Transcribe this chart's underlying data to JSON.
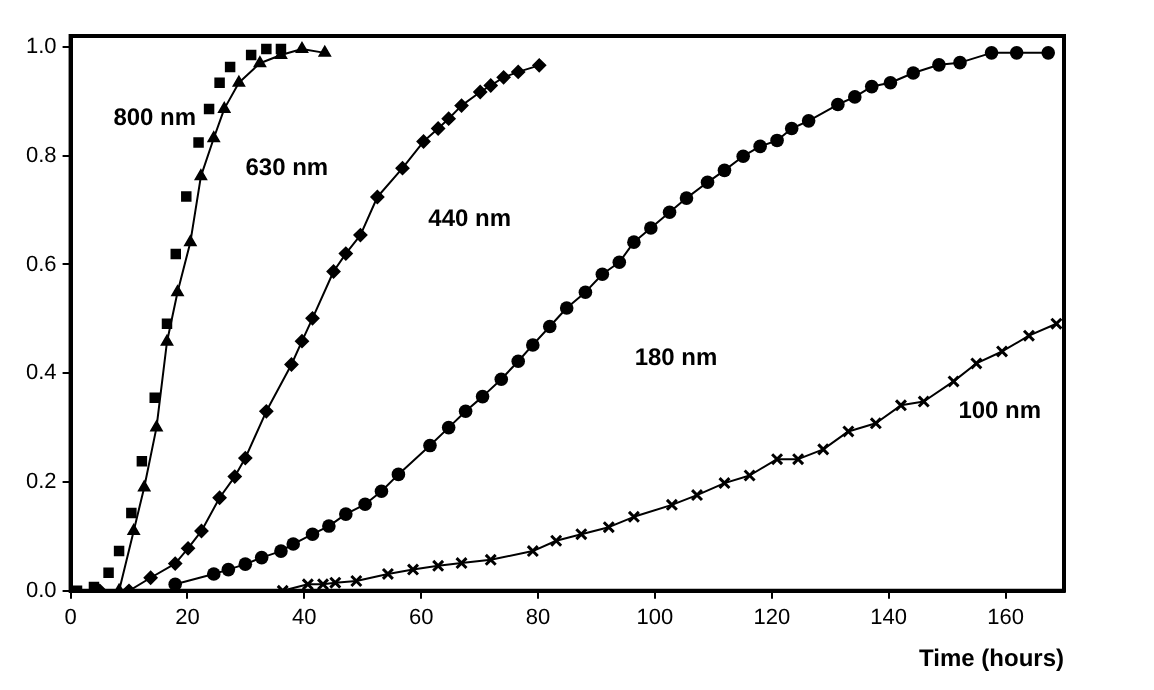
{
  "chart_data": {
    "type": "line",
    "xlabel": "Time (hours)",
    "xlim": [
      0,
      170
    ],
    "xticks": [
      0,
      20,
      40,
      60,
      80,
      100,
      120,
      140,
      160
    ],
    "ylim": [
      0,
      1.02
    ],
    "yticks": [
      {
        "value": 0,
        "label": "0.0"
      },
      {
        "value": 0.2,
        "label": "0.2"
      },
      {
        "value": 0.4,
        "label": "0.4"
      },
      {
        "value": 0.6,
        "label": "0.6"
      },
      {
        "value": 0.8,
        "label": "0.8"
      },
      {
        "value": 1,
        "label": "1.0"
      }
    ],
    "grid": false,
    "legend": false,
    "line_style": "solid",
    "series": [
      {
        "name": "800 nm",
        "type": "scatter",
        "marker": "square",
        "color": "#000000",
        "x": [
          1.1,
          4.0,
          6.5,
          8.3,
          10.4,
          12.2,
          14.4,
          16.5,
          18.0,
          19.8,
          21.9,
          23.7,
          25.5,
          27.3,
          30.9,
          33.5,
          36.0
        ],
        "values": [
          0,
          0.007,
          0.033,
          0.073,
          0.143,
          0.238,
          0.355,
          0.491,
          0.619,
          0.725,
          0.824,
          0.886,
          0.934,
          0.963,
          0.985,
          0.996,
          0.996
        ]
      },
      {
        "name": "630 nm",
        "type": "line",
        "marker": "triangle",
        "color": "#000000",
        "x": [
          0,
          4,
          8.3,
          10.8,
          12.6,
          14.7,
          16.5,
          18.3,
          20.5,
          22.3,
          24.5,
          26.3,
          28.8,
          32.4,
          36.0,
          39.6,
          43.5
        ],
        "values": [
          0,
          0,
          0,
          0.11,
          0.19,
          0.3,
          0.458,
          0.549,
          0.641,
          0.762,
          0.832,
          0.886,
          0.934,
          0.97,
          0.985,
          0.996,
          0.989
        ]
      },
      {
        "name": "440 nm",
        "type": "line",
        "marker": "diamond",
        "color": "#000000",
        "x": [
          5,
          10,
          13.7,
          17.9,
          20.1,
          22.4,
          25.5,
          28.1,
          29.9,
          33.5,
          37.8,
          39.6,
          41.4,
          45.0,
          47.1,
          49.6,
          52.5,
          56.8,
          60.4,
          62.9,
          64.7,
          66.9,
          70.1,
          71.9,
          74.1,
          76.6,
          80.2
        ],
        "values": [
          0,
          0,
          0.024,
          0.05,
          0.078,
          0.11,
          0.171,
          0.21,
          0.244,
          0.33,
          0.416,
          0.459,
          0.501,
          0.587,
          0.62,
          0.654,
          0.724,
          0.777,
          0.826,
          0.85,
          0.868,
          0.892,
          0.917,
          0.929,
          0.944,
          0.954,
          0.966
        ]
      },
      {
        "name": "180 nm",
        "type": "line",
        "marker": "circle",
        "color": "#000000",
        "x": [
          17.9,
          24.5,
          27.0,
          29.9,
          32.7,
          36.0,
          38.1,
          41.4,
          44.2,
          47.1,
          50.4,
          53.2,
          56.1,
          61.5,
          64.7,
          67.6,
          70.5,
          73.7,
          76.6,
          79.1,
          82.0,
          84.9,
          88.1,
          91.0,
          93.9,
          96.4,
          99.3,
          102.5,
          105.4,
          109.0,
          111.9,
          115.1,
          118.0,
          120.9,
          123.4,
          126.3,
          131.3,
          134.2,
          137.1,
          140.3,
          144.2,
          148.6,
          152.2,
          157.6,
          161.9,
          167.3
        ],
        "values": [
          0.012,
          0.031,
          0.039,
          0.049,
          0.061,
          0.073,
          0.086,
          0.104,
          0.119,
          0.141,
          0.159,
          0.183,
          0.214,
          0.267,
          0.3,
          0.33,
          0.357,
          0.389,
          0.422,
          0.452,
          0.486,
          0.52,
          0.549,
          0.582,
          0.604,
          0.641,
          0.667,
          0.696,
          0.722,
          0.751,
          0.773,
          0.799,
          0.817,
          0.828,
          0.85,
          0.864,
          0.894,
          0.908,
          0.927,
          0.934,
          0.952,
          0.967,
          0.971,
          0.989,
          0.989,
          0.989
        ]
      },
      {
        "name": "100 nm",
        "type": "line",
        "marker": "cross",
        "color": "#000000",
        "x": [
          36.3,
          40.6,
          43.2,
          45.3,
          48.9,
          54.3,
          58.6,
          62.9,
          66.9,
          71.9,
          79.1,
          83.1,
          87.4,
          92.1,
          96.4,
          102.9,
          107.2,
          111.9,
          116.2,
          120.9,
          124.5,
          128.8,
          133.1,
          137.8,
          142.1,
          146.0,
          151.1,
          155.0,
          159.4,
          164.0,
          168.7
        ],
        "values": [
          0,
          0.012,
          0.012,
          0.015,
          0.018,
          0.031,
          0.039,
          0.046,
          0.051,
          0.057,
          0.073,
          0.092,
          0.104,
          0.117,
          0.136,
          0.158,
          0.176,
          0.198,
          0.212,
          0.242,
          0.242,
          0.26,
          0.293,
          0.308,
          0.341,
          0.348,
          0.385,
          0.418,
          0.44,
          0.469,
          0.491
        ]
      }
    ]
  }
}
